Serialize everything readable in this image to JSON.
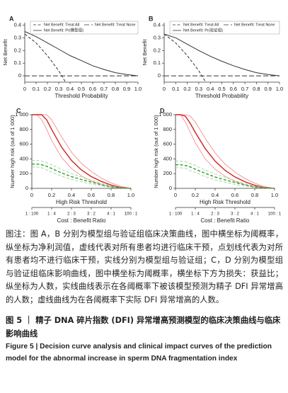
{
  "chart_data": [
    {
      "type": "line",
      "panel_label": "A",
      "xlabel": "Threshold Probability",
      "ylabel": "Net Benefit",
      "xlim": [
        0,
        1
      ],
      "ylim": [
        -0.05,
        0.42
      ],
      "xticks": [
        0,
        0.1,
        0.2,
        0.3,
        0.4,
        0.5,
        0.6,
        0.7,
        0.8,
        0.9,
        {
          "value": 1,
          "label": "1.0"
        }
      ],
      "yticks": [
        0,
        0.1,
        0.2,
        0.3,
        0.4
      ],
      "legend": "top",
      "series": [
        {
          "name": "Net Benefit: Treat All",
          "color": "#333333",
          "style": "dashed",
          "x": [
            0,
            0.1,
            0.2,
            0.3,
            0.36
          ],
          "values": [
            0.33,
            0.26,
            0.16,
            0.04,
            -0.05
          ]
        },
        {
          "name": "Net Benefit: Treat None",
          "color": "#333333",
          "style": "longdash",
          "x": [
            0,
            1
          ],
          "values": [
            0,
            0
          ]
        },
        {
          "name": "Net Benefit: Pr(模型组)",
          "color": "#333333",
          "style": "solid",
          "x": [
            0,
            0.1,
            0.2,
            0.3,
            0.4,
            0.5,
            0.6,
            0.7,
            0.8,
            0.9,
            1
          ],
          "values": [
            0.35,
            0.31,
            0.26,
            0.21,
            0.16,
            0.12,
            0.08,
            0.05,
            0.025,
            0.01,
            0
          ]
        }
      ]
    },
    {
      "type": "line",
      "panel_label": "B",
      "xlabel": "Threshold Probability",
      "ylabel": "Net Benefit",
      "xlim": [
        0,
        1
      ],
      "ylim": [
        -0.05,
        0.42
      ],
      "xticks": [
        0,
        0.1,
        0.2,
        0.3,
        0.4,
        0.5,
        0.6,
        0.7,
        0.8,
        0.9,
        {
          "value": 1,
          "label": "1.0"
        }
      ],
      "yticks": [
        0,
        0.1,
        0.2,
        0.3,
        0.4
      ],
      "legend": "top",
      "series": [
        {
          "name": "Net Benefit: Treat All",
          "color": "#333333",
          "style": "dashed",
          "x": [
            0,
            0.1,
            0.2,
            0.3,
            0.36
          ],
          "values": [
            0.33,
            0.26,
            0.16,
            0.04,
            -0.05
          ]
        },
        {
          "name": "Net Benefit: Treat None",
          "color": "#333333",
          "style": "longdash",
          "x": [
            0,
            1
          ],
          "values": [
            0,
            0
          ]
        },
        {
          "name": "Net Benefit: Pr(验证组)",
          "color": "#333333",
          "style": "solid",
          "x": [
            0,
            0.1,
            0.2,
            0.3,
            0.4,
            0.5,
            0.6,
            0.7,
            0.8,
            0.9,
            1
          ],
          "values": [
            0.33,
            0.3,
            0.25,
            0.2,
            0.155,
            0.115,
            0.08,
            0.05,
            0.025,
            0.01,
            0
          ]
        }
      ]
    },
    {
      "type": "line",
      "panel_label": "C",
      "xlabel": "High Risk Threshold",
      "ylabel": "Number high risk (out of 1 000)",
      "xlim": [
        0,
        1
      ],
      "ylim": [
        0,
        1000
      ],
      "xticks": [
        0,
        0.2,
        0.4,
        0.6,
        0.8,
        {
          "value": 1,
          "label": "1.0"
        }
      ],
      "yticks": [
        0,
        200,
        400,
        600,
        800,
        {
          "value": 1000,
          "label": "1 000"
        }
      ],
      "cost_benefit_label": "Cost : Benefit Ratio",
      "cost_benefit_ticks": [
        {
          "value": 0,
          "label": "1 : 100"
        },
        {
          "value": 0.2,
          "label": "1 : 4"
        },
        {
          "value": 0.4,
          "label": "2 : 3"
        },
        {
          "value": 0.6,
          "label": "3 : 2"
        },
        {
          "value": 0.8,
          "label": "4 : 1"
        },
        {
          "value": 1,
          "label": "100 : 1"
        }
      ],
      "series": [
        {
          "color": "#f08080",
          "style": "solid",
          "width": 0.8,
          "x": [
            0,
            0.05,
            0.1,
            0.15,
            0.2,
            0.3,
            0.4,
            0.5,
            0.6,
            0.7,
            0.8,
            0.9,
            1
          ],
          "values": [
            1000,
            1000,
            1000,
            1000,
            930,
            700,
            490,
            340,
            230,
            140,
            75,
            25,
            0
          ]
        },
        {
          "color": "#f08080",
          "style": "solid",
          "width": 0.8,
          "x": [
            0,
            0.05,
            0.1,
            0.15,
            0.2,
            0.3,
            0.4,
            0.5,
            0.6,
            0.7,
            0.8,
            0.9,
            1
          ],
          "values": [
            1000,
            1000,
            930,
            800,
            650,
            420,
            270,
            170,
            100,
            55,
            20,
            5,
            0
          ]
        },
        {
          "color": "#d42020",
          "style": "solid",
          "width": 1.4,
          "x": [
            0,
            0.05,
            0.1,
            0.15,
            0.2,
            0.3,
            0.4,
            0.5,
            0.6,
            0.7,
            0.8,
            0.9,
            1
          ],
          "values": [
            1000,
            1000,
            1000,
            930,
            800,
            560,
            380,
            250,
            160,
            95,
            45,
            12,
            0
          ]
        },
        {
          "color": "#8fd08f",
          "style": "dashed",
          "width": 0.8,
          "x": [
            0,
            0.05,
            0.1,
            0.15,
            0.2,
            0.3,
            0.4,
            0.5,
            0.6,
            0.7,
            0.8,
            0.9,
            1
          ],
          "values": [
            380,
            380,
            370,
            350,
            320,
            260,
            200,
            155,
            110,
            70,
            35,
            10,
            0
          ]
        },
        {
          "color": "#8fd08f",
          "style": "dashed",
          "width": 0.8,
          "x": [
            0,
            0.05,
            0.1,
            0.15,
            0.2,
            0.3,
            0.4,
            0.5,
            0.6,
            0.7,
            0.8,
            0.9,
            1
          ],
          "values": [
            290,
            290,
            280,
            250,
            220,
            165,
            120,
            90,
            60,
            35,
            12,
            3,
            0
          ]
        },
        {
          "color": "#2e9e2e",
          "style": "dashed",
          "width": 1.4,
          "x": [
            0,
            0.05,
            0.1,
            0.15,
            0.2,
            0.3,
            0.4,
            0.5,
            0.6,
            0.7,
            0.8,
            0.9,
            1
          ],
          "values": [
            330,
            330,
            320,
            300,
            270,
            210,
            160,
            120,
            85,
            50,
            22,
            6,
            0
          ]
        }
      ]
    },
    {
      "type": "line",
      "panel_label": "D",
      "xlabel": "High Risk Threshold",
      "ylabel": "Number high risk (out of 1 000)",
      "xlim": [
        0,
        1
      ],
      "ylim": [
        0,
        1000
      ],
      "xticks": [
        0,
        0.2,
        0.4,
        0.6,
        0.8,
        {
          "value": 1,
          "label": "1.0"
        }
      ],
      "yticks": [
        0,
        200,
        400,
        600,
        800,
        {
          "value": 1000,
          "label": "1 000"
        }
      ],
      "cost_benefit_label": "Cost : Benefit Ratio",
      "cost_benefit_ticks": [
        {
          "value": 0,
          "label": "1 : 100"
        },
        {
          "value": 0.2,
          "label": "1 : 4"
        },
        {
          "value": 0.4,
          "label": "2 : 3"
        },
        {
          "value": 0.6,
          "label": "3 : 2"
        },
        {
          "value": 0.8,
          "label": "4 : 1"
        },
        {
          "value": 1,
          "label": "100 : 1"
        }
      ],
      "series": [
        {
          "color": "#f08080",
          "style": "solid",
          "width": 0.8,
          "x": [
            0,
            0.05,
            0.1,
            0.15,
            0.2,
            0.3,
            0.4,
            0.5,
            0.6,
            0.7,
            0.8,
            0.9,
            1
          ],
          "values": [
            1000,
            1000,
            1000,
            980,
            900,
            680,
            480,
            330,
            220,
            135,
            70,
            22,
            0
          ]
        },
        {
          "color": "#f08080",
          "style": "solid",
          "width": 0.8,
          "x": [
            0,
            0.05,
            0.1,
            0.15,
            0.2,
            0.3,
            0.4,
            0.5,
            0.6,
            0.7,
            0.8,
            0.9,
            1
          ],
          "values": [
            1000,
            1000,
            900,
            760,
            620,
            400,
            260,
            165,
            95,
            50,
            18,
            4,
            0
          ]
        },
        {
          "color": "#d42020",
          "style": "solid",
          "width": 1.4,
          "x": [
            0,
            0.05,
            0.1,
            0.15,
            0.2,
            0.3,
            0.4,
            0.5,
            0.6,
            0.7,
            0.8,
            0.9,
            1
          ],
          "values": [
            1000,
            1000,
            980,
            880,
            760,
            540,
            370,
            245,
            155,
            90,
            42,
            10,
            0
          ]
        },
        {
          "color": "#8fd08f",
          "style": "dashed",
          "width": 0.8,
          "x": [
            0,
            0.05,
            0.1,
            0.15,
            0.2,
            0.3,
            0.4,
            0.5,
            0.6,
            0.7,
            0.8,
            0.9,
            1
          ],
          "values": [
            370,
            370,
            360,
            340,
            310,
            250,
            195,
            150,
            105,
            65,
            32,
            9,
            0
          ]
        },
        {
          "color": "#8fd08f",
          "style": "dashed",
          "width": 0.8,
          "x": [
            0,
            0.05,
            0.1,
            0.15,
            0.2,
            0.3,
            0.4,
            0.5,
            0.6,
            0.7,
            0.8,
            0.9,
            1
          ],
          "values": [
            280,
            280,
            270,
            240,
            215,
            160,
            115,
            85,
            55,
            32,
            11,
            3,
            0
          ]
        },
        {
          "color": "#2e9e2e",
          "style": "dashed",
          "width": 1.4,
          "x": [
            0,
            0.05,
            0.1,
            0.15,
            0.2,
            0.3,
            0.4,
            0.5,
            0.6,
            0.7,
            0.8,
            0.9,
            1
          ],
          "values": [
            320,
            320,
            310,
            290,
            260,
            205,
            155,
            115,
            80,
            48,
            21,
            6,
            0
          ]
        }
      ]
    }
  ],
  "caption": {
    "note": "图注：图 A，B 分别为模型组与验证组临床决策曲线，图中横坐标为阈概率，纵坐标为净利润值，虚线代表对所有患者均进行临床干预，点划线代表为对所有患者均不进行临床干预，实线分别为模型组与验证组；C，D 分别为模型组与验证组临床影响曲线，图中横坐标为阈概率，横坐标下方为损失：获益比；纵坐标为人数，实线曲线表示在各阈概率下被该模型预测为精子 DFI 异常增高的人数；虚线曲线为在各阈概率下实际 DFI 异常增高的人数。",
    "title_cn": "图 5 ｜ 精子 DNA 碎片指数 (DFI) 异常增高预测模型的临床决策曲线与临床影响曲线",
    "title_en": "Figure 5 | Decision curve analysis and clinical impact curves of the prediction model for the abnormal increase in sperm DNA fragmentation index"
  }
}
